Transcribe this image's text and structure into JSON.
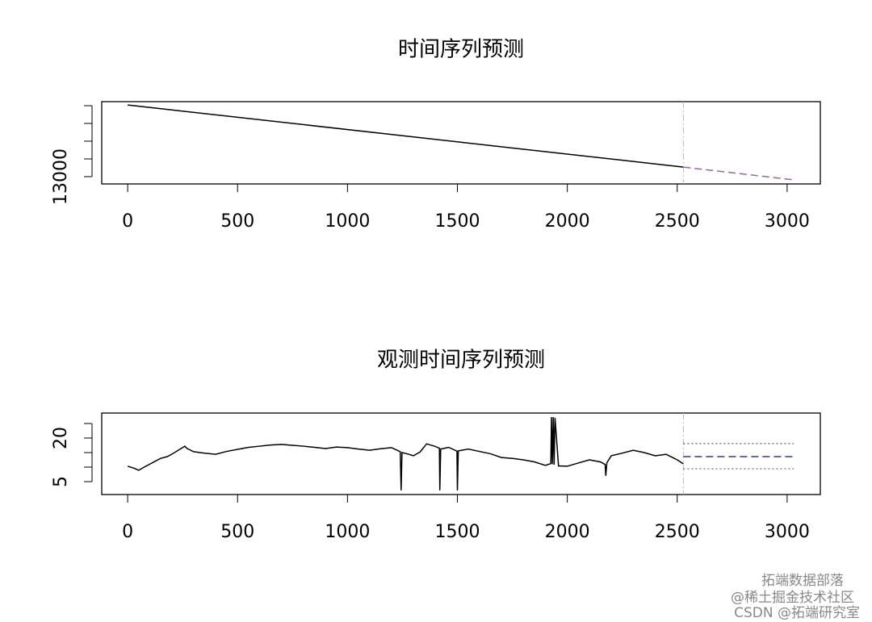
{
  "chart_data": [
    {
      "type": "line",
      "title": "时间序列预测",
      "x": [
        0,
        2528
      ],
      "values": [
        15020,
        13270
      ],
      "color": "#000000",
      "forecast_origin": 2528,
      "forecast": {
        "x": [
          2528,
          3030
        ],
        "mean": [
          13270,
          12910
        ],
        "color": "#8a6aa0"
      },
      "xlim": [
        -118,
        3151
      ],
      "ylim": [
        12795,
        15114
      ],
      "xticks": [
        0,
        500,
        1000,
        1500,
        2000,
        2500,
        3000
      ],
      "yticks": [
        13000
      ],
      "minor_yticks": [
        13500,
        14000,
        14500,
        15000
      ]
    },
    {
      "type": "line",
      "title": "观测时间序列预测",
      "x": [
        0,
        30,
        50,
        80,
        100,
        130,
        150,
        180,
        200,
        230,
        260,
        270,
        300,
        350,
        400,
        450,
        500,
        550,
        600,
        650,
        700,
        750,
        800,
        850,
        900,
        950,
        1000,
        1050,
        1100,
        1150,
        1200,
        1240,
        1244,
        1248,
        1270,
        1300,
        1330,
        1360,
        1400,
        1418,
        1420,
        1424,
        1460,
        1498,
        1500,
        1504,
        1550,
        1600,
        1650,
        1700,
        1750,
        1800,
        1850,
        1900,
        1925,
        1928,
        1932,
        1936,
        1940,
        1944,
        1960,
        2000,
        2050,
        2100,
        2150,
        2172,
        2175,
        2180,
        2200,
        2250,
        2300,
        2350,
        2400,
        2450,
        2500,
        2528
      ],
      "values": [
        10.3,
        9.6,
        8.9,
        10.2,
        11,
        12.2,
        13,
        13.6,
        14.4,
        15.8,
        17.2,
        16.4,
        15.3,
        14.8,
        14.4,
        15.4,
        16.1,
        16.8,
        17.2,
        17.6,
        17.8,
        17.5,
        17.2,
        16.8,
        16.4,
        16.9,
        16.7,
        16.2,
        15.8,
        16.3,
        16.7,
        15.3,
        2,
        15.0,
        14.6,
        13.9,
        15.2,
        18,
        17.1,
        16.5,
        2,
        16.2,
        16.8,
        15.5,
        2,
        15.6,
        16.2,
        15.4,
        14.6,
        13.3,
        13.0,
        12.5,
        11.8,
        10.6,
        11.2,
        27.2,
        11.0,
        27.2,
        10.8,
        27.0,
        10.4,
        10.3,
        11.4,
        12.5,
        11.8,
        10.9,
        7,
        11.5,
        13.9,
        14.8,
        15.8,
        15.0,
        13.9,
        14.4,
        12.5,
        11.1
      ],
      "color": "#000000",
      "forecast_origin": 2528,
      "forecast": {
        "x": [
          2528,
          3030
        ],
        "mean": [
          13.6,
          13.6
        ],
        "upper": [
          18.1,
          18.1
        ],
        "lower": [
          9.4,
          9.4
        ],
        "color": "#2b3a8a",
        "interval_color": "#6a6aa8"
      },
      "xlim": [
        -118,
        3151
      ],
      "ylim": [
        0.56,
        28.6
      ],
      "xticks": [
        0,
        500,
        1000,
        1500,
        2000,
        2500,
        3000
      ],
      "yticks": [
        5,
        20
      ],
      "minor_yticks": [
        10,
        15,
        25
      ]
    }
  ],
  "watermark": [
    "拓端数据部落",
    "@稀土掘金技术社区",
    "CSDN @拓端研究室"
  ]
}
